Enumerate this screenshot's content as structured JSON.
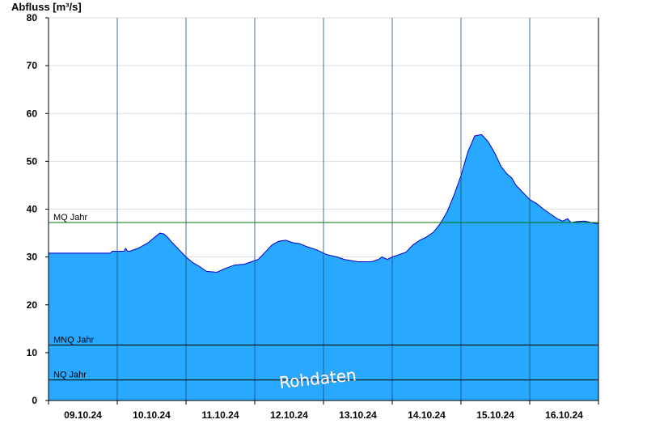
{
  "chart_data": {
    "type": "area",
    "title": "",
    "ylabel": "Abfluss [m³/s]",
    "xlabel": "",
    "ylim": [
      0,
      80
    ],
    "yticks": [
      0,
      10,
      20,
      30,
      40,
      50,
      60,
      70,
      80
    ],
    "xlim_days": [
      0,
      8
    ],
    "x_tick_labels": [
      "09.10.24",
      "10.10.24",
      "11.10.24",
      "12.10.24",
      "13.10.24",
      "14.10.24",
      "15.10.24",
      "16.10.24"
    ],
    "grid": true,
    "colors": {
      "fill": "#29a8ff",
      "line": "#0000cc",
      "mq": "#007700",
      "ref": "#000000",
      "grid": "#dddddd"
    },
    "series": [
      {
        "t": [
          0,
          0.9,
          0.93,
          1.1,
          1.12,
          1.15,
          1.18,
          1.3,
          1.45,
          1.55,
          1.62,
          1.68,
          1.74,
          1.8,
          1.9,
          2.0,
          2.1,
          2.2,
          2.3,
          2.45,
          2.55,
          2.7,
          2.85,
          2.95,
          3.05,
          3.15,
          3.25,
          3.35,
          3.45,
          3.55,
          3.65,
          3.75,
          3.9,
          4.05,
          4.2,
          4.3,
          4.5,
          4.6,
          4.7,
          4.8,
          4.85,
          4.93,
          5.0,
          5.1,
          5.2,
          5.3,
          5.4,
          5.5,
          5.6,
          5.7,
          5.8,
          5.9,
          6.0,
          6.1,
          6.2,
          6.3,
          6.4,
          6.5,
          6.58,
          6.66,
          6.74,
          6.8,
          6.9,
          7.0,
          7.06,
          7.1,
          7.2,
          7.3,
          7.4,
          7.48,
          7.55,
          7.6,
          7.68,
          7.8,
          7.9,
          7.95,
          8.0
        ],
        "values": [
          30.8,
          30.8,
          31.2,
          31.2,
          31.8,
          31.2,
          31.2,
          31.8,
          33.0,
          34.2,
          35.0,
          34.8,
          34.0,
          33.0,
          31.5,
          30.0,
          28.8,
          28.0,
          27.0,
          26.8,
          27.5,
          28.3,
          28.5,
          29.0,
          29.5,
          31.0,
          32.5,
          33.3,
          33.5,
          33.0,
          32.8,
          32.2,
          31.5,
          30.5,
          30.0,
          29.5,
          29.0,
          29.0,
          29.0,
          29.5,
          30.0,
          29.5,
          30.0,
          30.5,
          31.0,
          32.5,
          33.5,
          34.2,
          35.2,
          37.0,
          39.5,
          43.0,
          47.0,
          52.0,
          55.3,
          55.6,
          54.0,
          51.5,
          49.0,
          47.5,
          46.5,
          45.0,
          43.5,
          42.0,
          41.5,
          41.2,
          40.0,
          39.0,
          38.0,
          37.5,
          38.0,
          37.2,
          37.4,
          37.5,
          37.2,
          37.0,
          37.0
        ]
      }
    ],
    "reference_lines": [
      {
        "label": "MQ Jahr",
        "value": 37.2,
        "color": "#007700"
      },
      {
        "label": "MNQ Jahr",
        "value": 11.6,
        "color": "#000000"
      },
      {
        "label": "NQ Jahr",
        "value": 4.3,
        "color": "#000000"
      }
    ],
    "watermark": "Rohdaten"
  }
}
